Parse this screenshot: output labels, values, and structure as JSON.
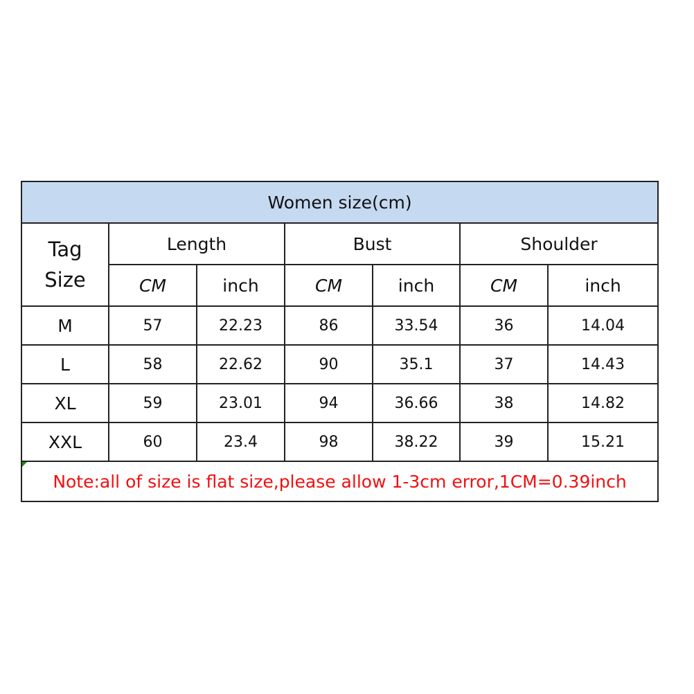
{
  "title": "Women size(cm)",
  "tag_size_label": [
    "Tag",
    "Size"
  ],
  "groups": [
    "Length",
    "Bust",
    "Shoulder"
  ],
  "units": [
    "CM",
    "inch",
    "CM",
    "inch",
    "CM",
    "inch"
  ],
  "rows": [
    {
      "size": "M",
      "values": [
        "57",
        "22.23",
        "86",
        "33.54",
        "36",
        "14.04"
      ]
    },
    {
      "size": "L",
      "values": [
        "58",
        "22.62",
        "90",
        "35.1",
        "37",
        "14.43"
      ]
    },
    {
      "size": "XL",
      "values": [
        "59",
        "23.01",
        "94",
        "36.66",
        "38",
        "14.82"
      ]
    },
    {
      "size": "XXL",
      "values": [
        "60",
        "23.4",
        "98",
        "38.22",
        "39",
        "15.21"
      ]
    }
  ],
  "note": "Note:all of size is flat size,please allow 1-3cm error,1CM=0.39inch",
  "colors": {
    "title_bg": "#c5d9f1",
    "note_text": "#f01010"
  }
}
